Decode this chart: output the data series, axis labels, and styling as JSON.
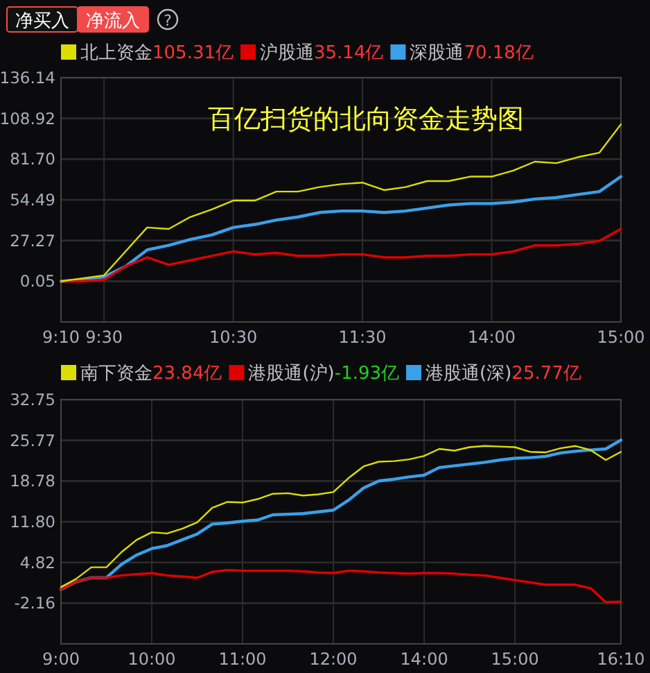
{
  "chart_data": [
    {
      "type": "other",
      "annotations": [
        "净买入",
        "净流入",
        "?"
      ]
    },
    {
      "type": "line",
      "title": "百亿扫货的北向资金走势图",
      "legend": "top",
      "grid": true,
      "categories": [
        "9:10",
        null,
        "9:30",
        null,
        null,
        null,
        null,
        null,
        "10:30",
        null,
        null,
        null,
        null,
        null,
        "11:30",
        null,
        null,
        null,
        null,
        null,
        "14:00",
        null,
        null,
        null,
        null,
        null,
        "15:00"
      ],
      "ylim": [
        -27.17,
        136.14
      ],
      "yticks": [
        0.05,
        27.27,
        54.49,
        {
          "value": 81.7,
          "label": "81.70"
        },
        108.92,
        136.14
      ],
      "annotations": [
        "105.31亿",
        "35.14亿",
        "70.18亿"
      ],
      "series": [
        {
          "name": "北上资金",
          "color": "#dddd00",
          "values": [
            0,
            2,
            4,
            20,
            36,
            35,
            43,
            48,
            54,
            54,
            60,
            60,
            63,
            65,
            66,
            61,
            63,
            67,
            67,
            70,
            70,
            74,
            80,
            79,
            83,
            86,
            105
          ]
        },
        {
          "name": "沪股通",
          "color": "#e00000",
          "values": [
            0,
            0,
            1,
            10,
            16,
            11,
            14,
            17,
            20,
            18,
            19,
            17,
            17,
            18,
            18,
            16,
            16,
            17,
            17,
            18,
            18,
            20,
            24,
            24,
            25,
            27,
            35
          ]
        },
        {
          "name": "深股通",
          "color": "#3aa0e8",
          "values": [
            0,
            1,
            3,
            10,
            21,
            24,
            28,
            31,
            36,
            38,
            41,
            43,
            46,
            47,
            47,
            46,
            47,
            49,
            51,
            52,
            52,
            53,
            55,
            56,
            58,
            60,
            70
          ]
        }
      ]
    },
    {
      "type": "line",
      "legend": "top",
      "grid": true,
      "categories": [
        "9:00",
        null,
        null,
        null,
        null,
        null,
        "10:00",
        null,
        null,
        null,
        null,
        null,
        "11:00",
        null,
        null,
        null,
        null,
        null,
        "12:00",
        null,
        null,
        null,
        null,
        null,
        "14:00",
        null,
        null,
        null,
        null,
        null,
        "15:00",
        null,
        null,
        null,
        null,
        null,
        null,
        "16:10"
      ],
      "ylim": [
        -9.14,
        32.75
      ],
      "yticks": [
        -2.16,
        4.82,
        {
          "value": 11.8,
          "label": "11.80"
        },
        18.78,
        25.77,
        32.75
      ],
      "annotations": [
        "23.84亿",
        "-1.93亿",
        "25.77亿"
      ],
      "series": [
        {
          "name": "南下资金",
          "color": "#dddd00",
          "values": [
            0.6,
            2.0,
            4.0,
            4.0,
            6.6,
            8.7,
            10.0,
            9.8,
            10.6,
            11.7,
            14.2,
            15.2,
            15.1,
            15.7,
            16.6,
            16.7,
            16.3,
            16.5,
            16.9,
            19.3,
            21.3,
            22.1,
            22.2,
            22.5,
            23.1,
            24.3,
            24.0,
            24.6,
            24.8,
            24.7,
            24.6,
            23.8,
            23.7,
            24.4,
            24.8,
            24.1,
            22.4,
            23.8
          ]
        },
        {
          "name": "港股通(沪)",
          "color": "#e00000",
          "values": [
            0.2,
            1.5,
            2.2,
            2.2,
            2.6,
            2.8,
            3.0,
            2.6,
            2.4,
            2.2,
            3.2,
            3.5,
            3.4,
            3.4,
            3.4,
            3.4,
            3.3,
            3.1,
            3.0,
            3.4,
            3.3,
            3.1,
            3.0,
            2.9,
            3.0,
            3.0,
            2.9,
            2.7,
            2.6,
            2.2,
            1.8,
            1.4,
            1.0,
            1.0,
            1.0,
            0.4,
            -2.0,
            -1.9
          ]
        },
        {
          "name": "港股通(深)",
          "color": "#3aa0e8",
          "values": [
            0.2,
            1.5,
            2.2,
            2.2,
            4.5,
            6.1,
            7.2,
            7.7,
            8.7,
            9.7,
            11.4,
            11.6,
            11.9,
            12.1,
            13.0,
            13.1,
            13.2,
            13.5,
            13.8,
            15.5,
            17.6,
            18.8,
            19.1,
            19.5,
            19.8,
            21.1,
            21.4,
            21.7,
            22.0,
            22.4,
            22.7,
            22.8,
            23.0,
            23.6,
            23.9,
            24.1,
            24.3,
            25.8
          ]
        }
      ]
    }
  ]
}
